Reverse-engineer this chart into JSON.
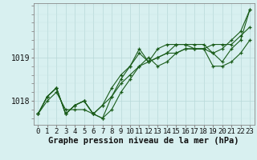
{
  "hours": [
    0,
    1,
    2,
    3,
    4,
    5,
    6,
    7,
    8,
    9,
    10,
    11,
    12,
    13,
    14,
    15,
    16,
    17,
    18,
    19,
    20,
    21,
    22,
    23
  ],
  "line1": [
    1017.7,
    1018.0,
    1018.2,
    1017.8,
    1017.8,
    1017.8,
    1017.7,
    1017.9,
    1018.1,
    1018.4,
    1018.6,
    1018.8,
    1018.9,
    1019.0,
    1019.1,
    1019.1,
    1019.2,
    1019.2,
    1019.2,
    1019.3,
    1019.3,
    1019.3,
    1019.5,
    1019.7
  ],
  "line2": [
    1017.7,
    1018.1,
    1018.3,
    1017.7,
    1017.9,
    1018.0,
    1017.7,
    1017.9,
    1018.3,
    1018.6,
    1018.8,
    1019.1,
    1018.9,
    1019.2,
    1019.3,
    1019.3,
    1019.3,
    1019.3,
    1019.3,
    1019.1,
    1019.2,
    1019.4,
    1019.6,
    1020.1
  ],
  "line3": [
    1017.7,
    1018.1,
    1018.3,
    1017.7,
    1017.9,
    1018.0,
    1017.7,
    1017.6,
    1018.1,
    1018.5,
    1018.8,
    1019.2,
    1018.9,
    1019.0,
    1019.1,
    1019.3,
    1019.3,
    1019.2,
    1019.2,
    1019.1,
    1018.9,
    1019.2,
    1019.4,
    1020.1
  ],
  "line4": [
    1017.7,
    1018.1,
    1018.3,
    1017.7,
    1017.9,
    1018.0,
    1017.7,
    1017.6,
    1017.8,
    1018.2,
    1018.5,
    1018.8,
    1019.0,
    1018.8,
    1018.9,
    1019.1,
    1019.2,
    1019.2,
    1019.2,
    1018.8,
    1018.8,
    1018.9,
    1019.1,
    1019.4
  ],
  "line_color": "#1a5c1a",
  "bg_color": "#d8f0f0",
  "grid_color": "#b8d8d8",
  "grid_color_minor": "#c8e4e4",
  "ylim": [
    1017.45,
    1020.25
  ],
  "xlabel": "Graphe pression niveau de la mer (hPa)",
  "xlabel_fontsize": 7.5,
  "tick_fontsize": 6.5
}
